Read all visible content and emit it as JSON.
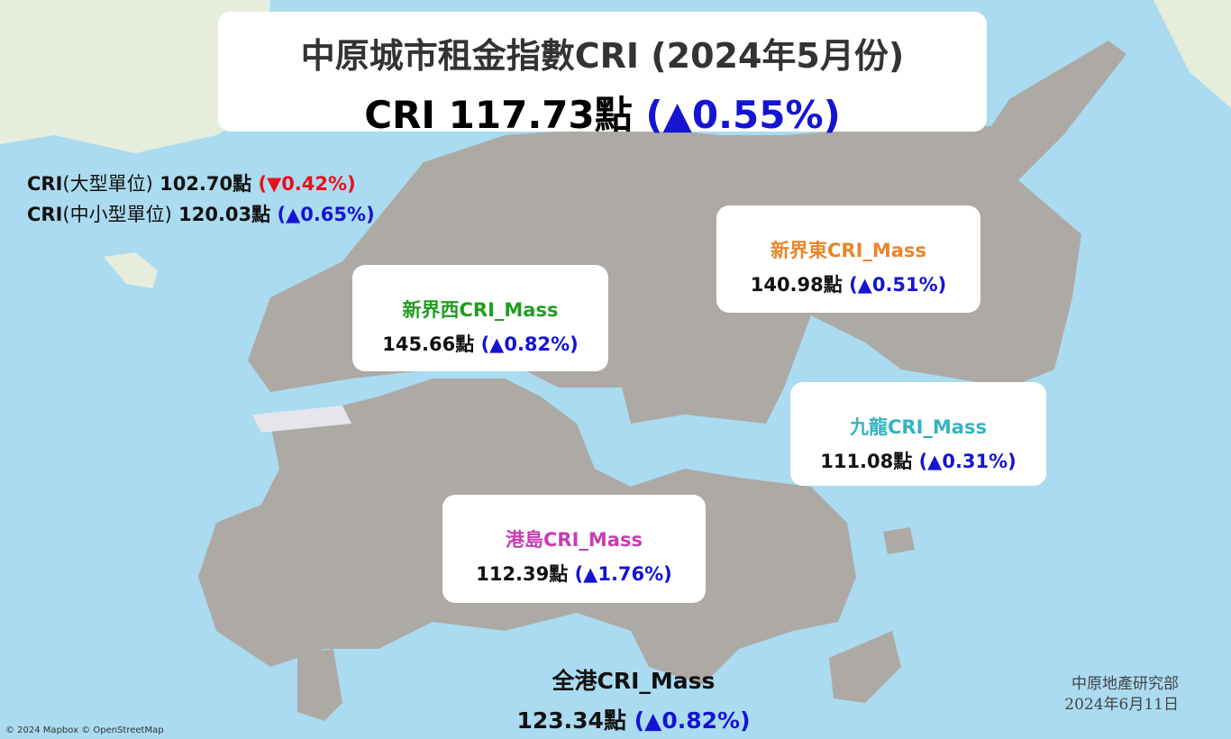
{
  "title": "中原城市租金指數CRI (2024年5月份)",
  "headline": {
    "label": "CRI",
    "value": "117.73點",
    "change": "(▲0.55%)"
  },
  "summary": [
    {
      "prefix": "CRI",
      "label": "(大型單位)",
      "value": "102.70點",
      "change": "(▼0.42%)",
      "direction": "down"
    },
    {
      "prefix": "CRI",
      "label": "(中小型單位)",
      "value": "120.03點",
      "change": "(▲0.65%)",
      "direction": "up"
    }
  ],
  "regions": [
    {
      "name": "新界西CRI_Mass",
      "value": "145.66點",
      "change": "(▲0.82%)",
      "color": "#1e9e1e"
    },
    {
      "name": "新界東CRI_Mass",
      "value": "140.98點",
      "change": "(▲0.51%)",
      "color": "#e8862a"
    },
    {
      "name": "九龍CRI_Mass",
      "value": "111.08點",
      "change": "(▲0.31%)",
      "color": "#33b3c0"
    },
    {
      "name": "港島CRI_Mass",
      "value": "112.39點",
      "change": "(▲1.76%)",
      "color": "#c83cb4"
    }
  ],
  "overall": {
    "name": "全港CRI_Mass",
    "value": "123.34點",
    "change": "(▲0.82%)"
  },
  "footer": {
    "source": "中原地產研究部",
    "date": "2024年6月11日"
  },
  "attribution": "© 2024 Mapbox © OpenStreetMap"
}
